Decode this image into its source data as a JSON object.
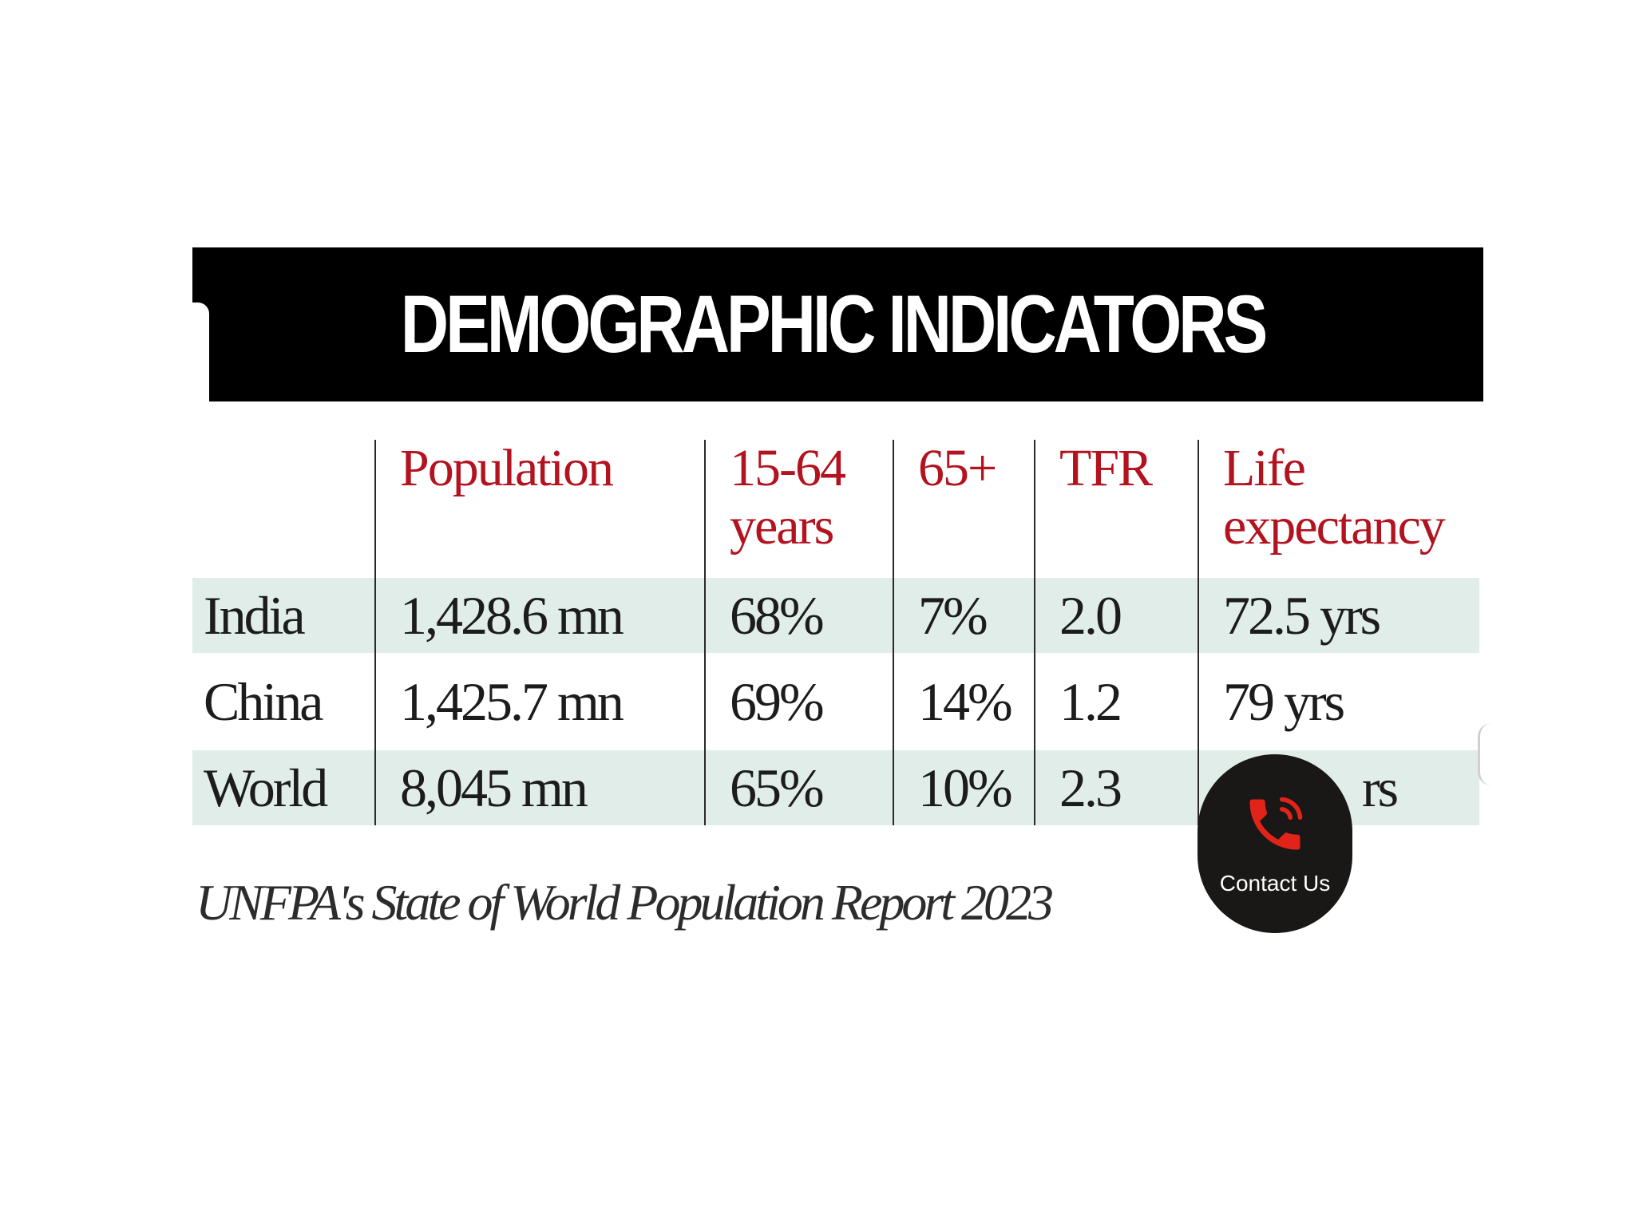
{
  "graphic": {
    "title": "DEMOGRAPHIC INDICATORS",
    "table": {
      "headers": [
        {
          "label": ""
        },
        {
          "label": "Population"
        },
        {
          "label": "15-64 years"
        },
        {
          "label": "65+"
        },
        {
          "label": "TFR"
        },
        {
          "label": "Life expectancy"
        }
      ],
      "rows": [
        {
          "name": "India",
          "population": "1,428.6 mn",
          "age_15_64": "68%",
          "age_65_plus": "7%",
          "tfr": "2.0",
          "life_expectancy": "72.5 yrs"
        },
        {
          "name": "China",
          "population": "1,425.7 mn",
          "age_15_64": "69%",
          "age_65_plus": "14%",
          "tfr": "1.2",
          "life_expectancy": "79 yrs"
        },
        {
          "name": "World",
          "population": "8,045 mn",
          "age_15_64": "65%",
          "age_65_plus": "10%",
          "tfr": "2.3",
          "life_expectancy": "rs"
        }
      ]
    },
    "source": "UNFPA's State of World Population Report 2023"
  },
  "contact_button": {
    "label": "Contact Us",
    "icon": "phone-icon"
  },
  "colors": {
    "banner_background": "#000000",
    "header_text": "#b3121f",
    "row_shade": "#e1ede8",
    "button_background": "#1a1717",
    "icon_red": "#e2231a"
  }
}
